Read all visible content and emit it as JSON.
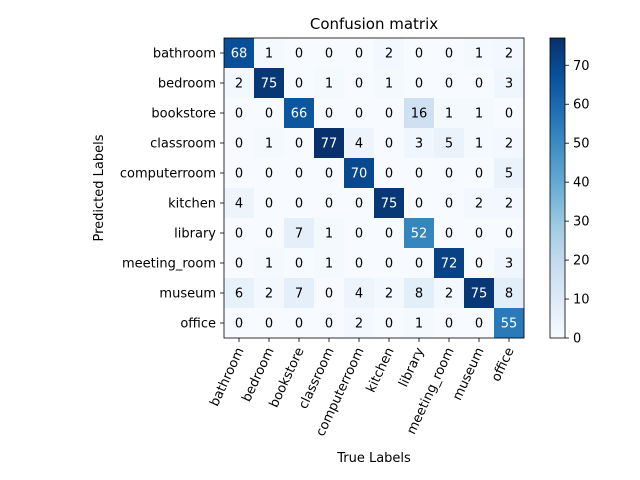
{
  "chart_data": {
    "type": "heatmap",
    "title": "Confusion matrix",
    "xlabel": "True Labels",
    "ylabel": "Predicted Labels",
    "x_categories": [
      "bathroom",
      "bedroom",
      "bookstore",
      "classroom",
      "computerroom",
      "kitchen",
      "library",
      "meeting_room",
      "museum",
      "office"
    ],
    "y_categories": [
      "bathroom",
      "bedroom",
      "bookstore",
      "classroom",
      "computerroom",
      "kitchen",
      "library",
      "meeting_room",
      "museum",
      "office"
    ],
    "values": [
      [
        68,
        1,
        0,
        0,
        0,
        2,
        0,
        0,
        1,
        2
      ],
      [
        2,
        75,
        0,
        1,
        0,
        1,
        0,
        0,
        0,
        3
      ],
      [
        0,
        0,
        66,
        0,
        0,
        0,
        16,
        1,
        1,
        0
      ],
      [
        0,
        1,
        0,
        77,
        4,
        0,
        3,
        5,
        1,
        2
      ],
      [
        0,
        0,
        0,
        0,
        70,
        0,
        0,
        0,
        0,
        5
      ],
      [
        4,
        0,
        0,
        0,
        0,
        75,
        0,
        0,
        2,
        2
      ],
      [
        0,
        0,
        7,
        1,
        0,
        0,
        52,
        0,
        0,
        0
      ],
      [
        0,
        1,
        0,
        1,
        0,
        0,
        0,
        72,
        0,
        3
      ],
      [
        6,
        2,
        7,
        0,
        4,
        2,
        8,
        2,
        75,
        8
      ],
      [
        0,
        0,
        0,
        0,
        2,
        0,
        1,
        0,
        0,
        55
      ]
    ],
    "colorbar": {
      "min": 0,
      "max": 77,
      "ticks": [
        0,
        10,
        20,
        30,
        40,
        50,
        60,
        70
      ]
    },
    "colormap": "Blues"
  }
}
